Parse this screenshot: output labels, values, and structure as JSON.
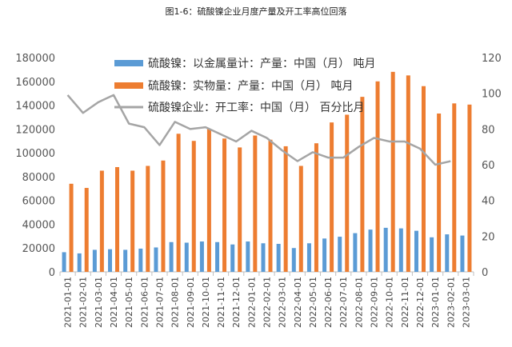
{
  "chart_data": {
    "type": "bar",
    "title": "图1-6：硫酸镍企业月度产量及开工率高位回落",
    "categories": [
      "2021-01-01",
      "2021-02-01",
      "2021-03-01",
      "2021-04-01",
      "2021-05-01",
      "2021-06-01",
      "2021-07-01",
      "2021-08-01",
      "2021-09-01",
      "2021-10-01",
      "2021-11-01",
      "2021-12-01",
      "2022-01-01",
      "2022-02-01",
      "2022-03-01",
      "2022-04-01",
      "2022-05-01",
      "2022-06-01",
      "2022-07-01",
      "2022-08-01",
      "2022-09-01",
      "2022-10-01",
      "2022-11-01",
      "2022-12-01",
      "2023-01-01",
      "2023-02-01",
      "2023-03-01"
    ],
    "series": [
      {
        "name": "硫酸镍：以金属量计：产量：中国（月）  吨月",
        "kind": "bar",
        "axis": "left",
        "color": "#5b9bd5",
        "values": [
          16500,
          15500,
          18500,
          19000,
          18500,
          19500,
          20500,
          25000,
          24500,
          25500,
          25000,
          23000,
          25500,
          24000,
          23500,
          20000,
          24000,
          28000,
          29500,
          32500,
          35500,
          37000,
          36500,
          34500,
          29000,
          31500,
          30500
        ]
      },
      {
        "name": "硫酸镍：实物量：产量：中国（月）  吨月",
        "kind": "bar",
        "axis": "left",
        "color": "#ed7d31",
        "values": [
          74000,
          70500,
          85000,
          88000,
          85000,
          89000,
          93500,
          116000,
          110000,
          120000,
          112000,
          104500,
          114500,
          111000,
          105500,
          89000,
          108000,
          125500,
          132000,
          147000,
          160000,
          168000,
          165000,
          156000,
          133000,
          141500,
          140500
        ]
      },
      {
        "name": "硫酸镍企业：开工率：中国（月）  百分比月",
        "kind": "line",
        "axis": "right",
        "color": "#a5a5a5",
        "values": [
          99,
          89,
          95,
          99,
          83,
          81,
          71,
          84,
          80,
          81,
          77,
          73,
          79,
          75,
          68,
          62,
          67,
          64,
          64,
          70,
          75,
          73,
          73,
          69,
          60,
          62,
          null
        ]
      }
    ],
    "y_left": {
      "min": 0,
      "max": 180000,
      "ticks": [
        0,
        20000,
        40000,
        60000,
        80000,
        100000,
        120000,
        140000,
        160000,
        180000
      ]
    },
    "y_right": {
      "min": 0,
      "max": 120,
      "ticks": [
        0,
        20,
        40,
        60,
        80,
        100,
        120
      ]
    },
    "legend_position": "top-center"
  }
}
